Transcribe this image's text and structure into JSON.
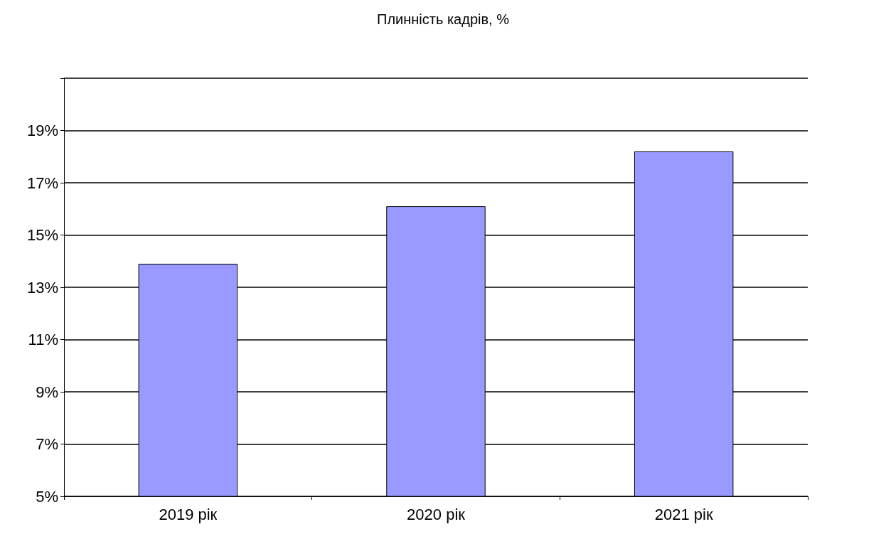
{
  "chart_data": {
    "type": "bar",
    "title": "Плинність кадрів, %",
    "categories": [
      "2019 рік",
      "2020 рік",
      "2021 рік"
    ],
    "values": [
      13.9,
      16.1,
      18.2
    ],
    "color": "#9999ff",
    "ylim": [
      5,
      21
    ],
    "yticks": [
      {
        "value": 5,
        "label": "5%"
      },
      {
        "value": 7,
        "label": "7%"
      },
      {
        "value": 9,
        "label": "9%"
      },
      {
        "value": 11,
        "label": "11%"
      },
      {
        "value": 13,
        "label": "13%"
      },
      {
        "value": 15,
        "label": "15%"
      },
      {
        "value": 17,
        "label": "17%"
      },
      {
        "value": 19,
        "label": "19%"
      },
      {
        "value": 21,
        "label": null
      }
    ],
    "grid": true
  }
}
